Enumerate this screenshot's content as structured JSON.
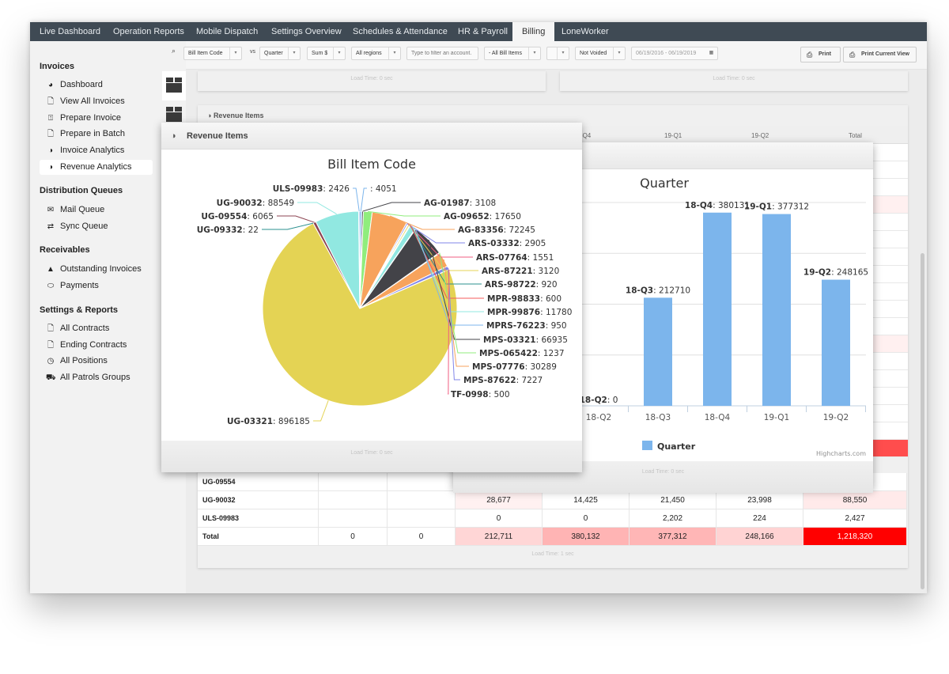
{
  "nav": {
    "tabs": [
      "Live Dashboard",
      "Operation Reports",
      "Mobile Dispatch",
      "Settings Overview",
      "Schedules & Attendance",
      "HR & Payroll",
      "Billing",
      "LoneWorker"
    ],
    "active": "Billing"
  },
  "sidebar": {
    "sections": [
      {
        "title": "Invoices",
        "items": [
          {
            "label": "Dashboard",
            "icon": "pie-chart-icon"
          },
          {
            "label": "View All Invoices",
            "icon": "document-icon"
          },
          {
            "label": "Prepare Invoice",
            "icon": "upload-icon"
          },
          {
            "label": "Prepare in Batch",
            "icon": "document-icon"
          },
          {
            "label": "Invoice Analytics",
            "icon": "analytics-icon"
          },
          {
            "label": "Revenue Analytics",
            "icon": "analytics-icon",
            "active": true
          }
        ]
      },
      {
        "title": "Distribution Queues",
        "items": [
          {
            "label": "Mail Queue",
            "icon": "mail-icon"
          },
          {
            "label": "Sync Queue",
            "icon": "sync-icon"
          }
        ]
      },
      {
        "title": "Receivables",
        "items": [
          {
            "label": "Outstanding Invoices",
            "icon": "warning-icon"
          },
          {
            "label": "Payments",
            "icon": "payment-icon"
          }
        ]
      },
      {
        "title": "Settings & Reports",
        "items": [
          {
            "label": "All Contracts",
            "icon": "document-icon"
          },
          {
            "label": "Ending Contracts",
            "icon": "document-icon"
          },
          {
            "label": "All Positions",
            "icon": "clock-icon"
          },
          {
            "label": "All Patrols Groups",
            "icon": "car-icon"
          }
        ]
      }
    ]
  },
  "toolbar": {
    "group_by": "Bill Item Code",
    "vs_label": "vs",
    "compare_by": "Quarter",
    "aggregate": "Sum $",
    "region": "All regions",
    "filter_placeholder": "Type to filter an account.",
    "bill_items": "- All Bill Items",
    "extra": "",
    "void_filter": "Not Voided",
    "date_range": "06/19/2016 - 06/19/2019",
    "print_label": "Print",
    "print_view_label": "Print Current View"
  },
  "background": {
    "load_time_0": "Load Time: 0 sec",
    "load_time_1": "Load Time: 1 sec",
    "revenue_panel_title": "Revenue Items",
    "table": {
      "headers": [
        "",
        "",
        "",
        "",
        "18-Q4",
        "19-Q1",
        "19-Q2",
        "Total"
      ],
      "rows": [
        {
          "name": "UG-09554",
          "values": [
            "",
            "",
            "",
            "",
            "",
            "",
            ""
          ]
        },
        {
          "name": "UG-90032",
          "values": [
            "",
            "",
            "28,677",
            "14,425",
            "21,450",
            "23,998",
            "88,550"
          ]
        },
        {
          "name": "ULS-09983",
          "values": [
            "",
            "",
            "0",
            "0",
            "2,202",
            "224",
            "2,427"
          ]
        },
        {
          "name": "Total",
          "values": [
            "0",
            "0",
            "212,711",
            "380,132",
            "377,312",
            "248,166",
            "1,218,320"
          ]
        }
      ]
    }
  },
  "pie_panel": {
    "title": "Revenue Items",
    "load_time": "Load Time: 0 sec"
  },
  "bar_panel": {
    "load_time": "Load Time: 0 sec",
    "credits": "Highcharts.com"
  },
  "chart_data": [
    {
      "type": "pie",
      "title": "Bill Item Code",
      "slices": [
        {
          "name": "",
          "value": 4051,
          "color": "#7cb5ec"
        },
        {
          "name": "AG-01987",
          "value": 3108,
          "color": "#434348"
        },
        {
          "name": "AG-09652",
          "value": 17650,
          "color": "#90ed7d"
        },
        {
          "name": "AG-83356",
          "value": 72245,
          "color": "#f7a35c"
        },
        {
          "name": "ARS-03332",
          "value": 2905,
          "color": "#8085e9"
        },
        {
          "name": "ARS-07764",
          "value": 1551,
          "color": "#f15c80"
        },
        {
          "name": "ARS-87221",
          "value": 3120,
          "color": "#e4d354"
        },
        {
          "name": "ARS-98722",
          "value": 920,
          "color": "#2b908f"
        },
        {
          "name": "MPR-98833",
          "value": 600,
          "color": "#f45b5b"
        },
        {
          "name": "MPR-99876",
          "value": 11780,
          "color": "#91e8e1"
        },
        {
          "name": "MPRS-76223",
          "value": 950,
          "color": "#7cb5ec"
        },
        {
          "name": "MPS-03321",
          "value": 66935,
          "color": "#434348"
        },
        {
          "name": "MPS-065422",
          "value": 1237,
          "color": "#90ed7d"
        },
        {
          "name": "MPS-07776",
          "value": 30289,
          "color": "#f7a35c"
        },
        {
          "name": "MPS-87622",
          "value": 7227,
          "color": "#8085e9"
        },
        {
          "name": "TF-0998",
          "value": 500,
          "color": "#f15c80"
        },
        {
          "name": "UG-03321",
          "value": 896185,
          "color": "#e4d354"
        },
        {
          "name": "UG-09332",
          "value": 22,
          "color": "#2b908f"
        },
        {
          "name": "UG-09554",
          "value": 6065,
          "color": "#8d4653"
        },
        {
          "name": "UG-90032",
          "value": 88549,
          "color": "#91e8e1"
        },
        {
          "name": "ULS-09983",
          "value": 2426,
          "color": "#7cb5ec"
        }
      ]
    },
    {
      "type": "bar",
      "title": "Quarter",
      "categories": [
        "18-Q2",
        "18-Q3",
        "18-Q4",
        "19-Q1",
        "19-Q2"
      ],
      "series": [
        {
          "name": "Quarter",
          "values": [
            0,
            212710,
            380131,
            377312,
            248165
          ],
          "color": "#7cb5ec"
        }
      ],
      "ylim": [
        0,
        400000
      ],
      "grid": true,
      "legend": "bottom"
    }
  ]
}
